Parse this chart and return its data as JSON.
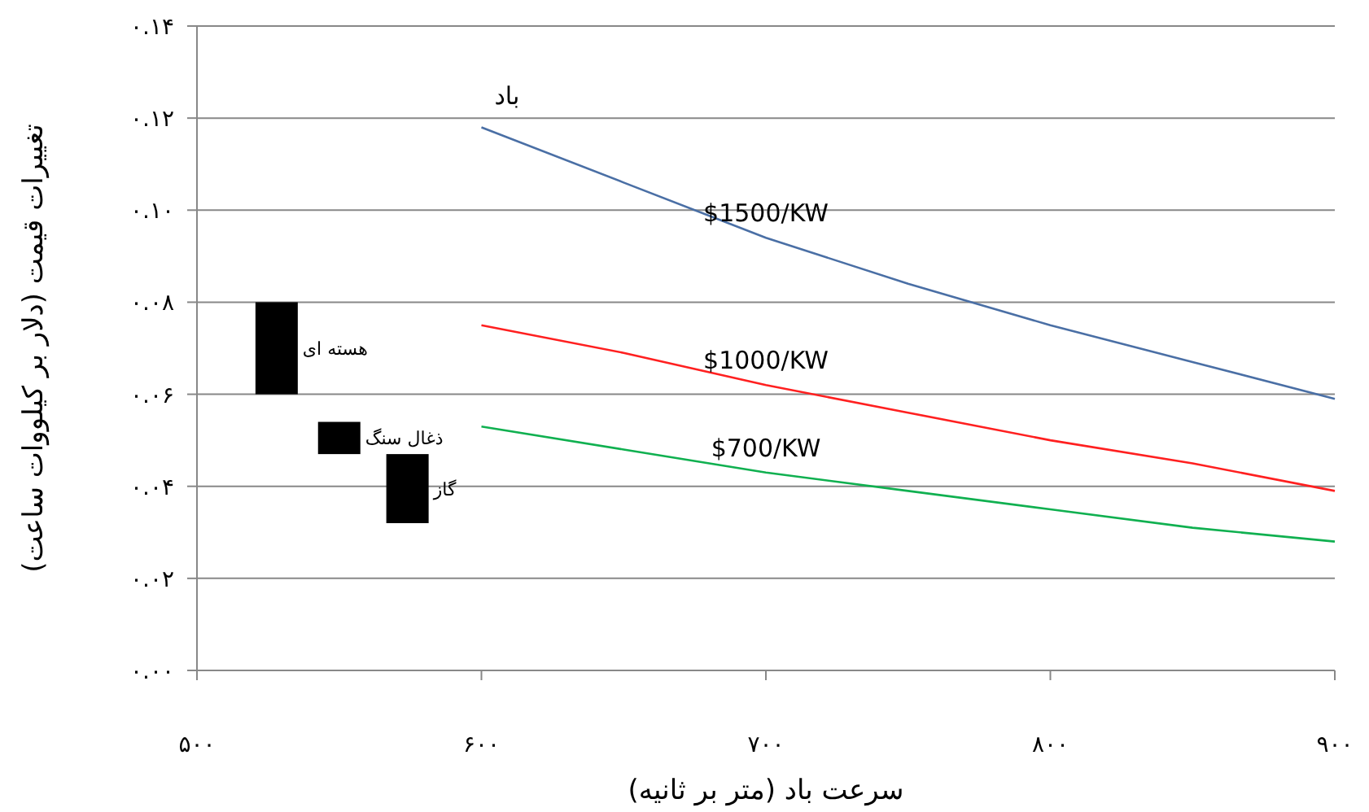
{
  "chart_data": {
    "type": "line",
    "xlabel": "سرعت باد (متر بر ثانیه)",
    "ylabel": "تغییرات قیمت (دلار بر کیلووات ساعت)",
    "xlim": [
      500,
      900
    ],
    "xticks": [
      {
        "value": 500,
        "label": "۵۰۰"
      },
      {
        "value": 600,
        "label": "۶۰۰"
      },
      {
        "value": 700,
        "label": "۷۰۰"
      },
      {
        "value": 800,
        "label": "۸۰۰"
      },
      {
        "value": 900,
        "label": "۹۰۰"
      }
    ],
    "ylim": [
      0,
      0.14
    ],
    "yticks": [
      {
        "value": 0,
        "label": "۰.۰۰"
      },
      {
        "value": 0.02,
        "label": "۰.۰۲"
      },
      {
        "value": 0.04,
        "label": "۰.۰۴"
      },
      {
        "value": 0.06,
        "label": "۰.۰۶"
      },
      {
        "value": 0.08,
        "label": "۰.۰۸"
      },
      {
        "value": 0.1,
        "label": "۰.۱۰"
      },
      {
        "value": 0.12,
        "label": "۰.۱۲"
      },
      {
        "value": 0.14,
        "label": "۰.۱۴"
      }
    ],
    "grid": "y",
    "legend": false,
    "annotations": [
      "باد"
    ],
    "series": [
      {
        "name": "$1500/KW",
        "color": "#4a6fa5",
        "x": [
          600,
          650,
          700,
          750,
          800,
          850,
          900
        ],
        "values": [
          0.118,
          0.106,
          0.094,
          0.084,
          0.075,
          0.067,
          0.059
        ]
      },
      {
        "name": "$1000/KW",
        "color": "#ff2020",
        "x": [
          600,
          650,
          700,
          750,
          800,
          850,
          900
        ],
        "values": [
          0.075,
          0.069,
          0.062,
          0.056,
          0.05,
          0.045,
          0.039
        ]
      },
      {
        "name": "$700/KW",
        "color": "#10b050",
        "x": [
          600,
          650,
          700,
          750,
          800,
          850,
          900
        ],
        "values": [
          0.053,
          0.048,
          0.043,
          0.039,
          0.035,
          0.031,
          0.028
        ]
      },
      {
        "name": "هسته ای",
        "type": "bar",
        "color": "#000000",
        "x": [
          528
        ],
        "base": [
          0.06
        ],
        "values": [
          0.02
        ]
      },
      {
        "name": "ذغال سنگ",
        "type": "bar",
        "color": "#000000",
        "x": [
          550
        ],
        "base": [
          0.047
        ],
        "values": [
          0.007
        ]
      },
      {
        "name": "گاز",
        "type": "bar",
        "color": "#000000",
        "x": [
          574
        ],
        "base": [
          0.032
        ],
        "values": [
          0.015
        ]
      }
    ]
  }
}
